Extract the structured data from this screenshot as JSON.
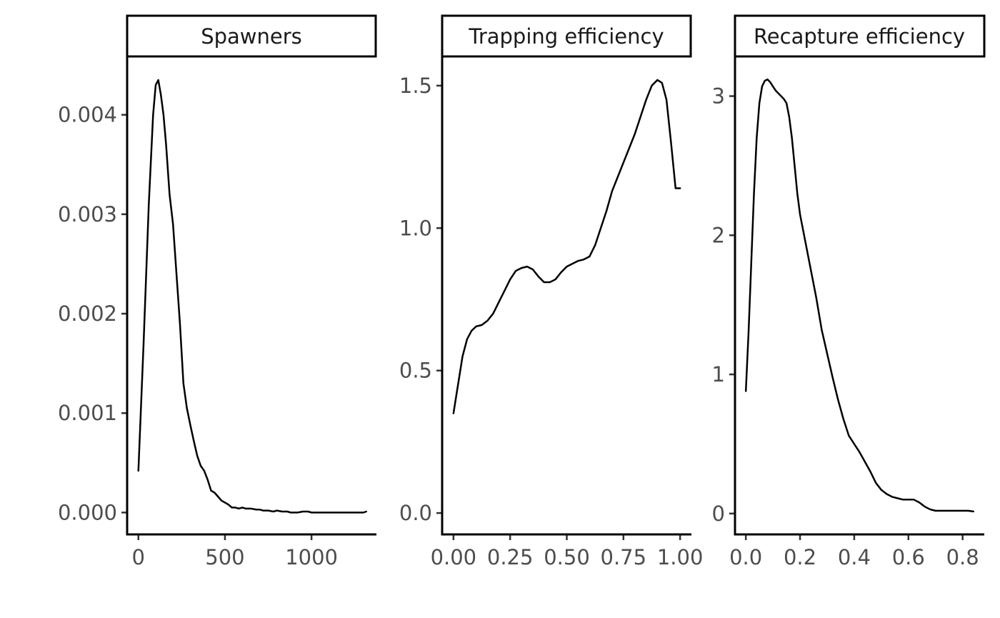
{
  "chart_data": [
    {
      "type": "line",
      "title": "Spawners",
      "xlabel": "",
      "ylabel": "",
      "xlim": [
        -65,
        1375
      ],
      "ylim": [
        -0.00022,
        0.00458
      ],
      "x_ticks": [
        0,
        500,
        1000
      ],
      "x_tick_labels": [
        "0",
        "500",
        "1000"
      ],
      "y_ticks": [
        0,
        0.001,
        0.002,
        0.003,
        0.004
      ],
      "y_tick_labels": [
        "0.000",
        "0.001",
        "0.002",
        "0.003",
        "0.004"
      ],
      "grid": false,
      "series": [
        {
          "x": [
            0,
            30,
            60,
            85,
            100,
            115,
            130,
            145,
            160,
            180,
            200,
            220,
            240,
            260,
            280,
            300,
            320,
            340,
            360,
            380,
            400,
            420,
            440,
            460,
            480,
            500,
            520,
            540,
            560,
            580,
            600,
            620,
            650,
            680,
            700,
            720,
            750,
            780,
            800,
            830,
            860,
            880,
            900,
            920,
            950,
            980,
            1000,
            1050,
            1100,
            1150,
            1200,
            1250,
            1300,
            1316
          ],
          "y": [
            0.00042,
            0.0017,
            0.0031,
            0.004,
            0.0043,
            0.00435,
            0.0042,
            0.004,
            0.0037,
            0.0032,
            0.0029,
            0.0024,
            0.0019,
            0.0013,
            0.00105,
            0.00088,
            0.00072,
            0.00057,
            0.00047,
            0.00042,
            0.00033,
            0.00022,
            0.0002,
            0.00016,
            0.00012,
            0.0001,
            8e-05,
            5e-05,
            5e-05,
            4e-05,
            5e-05,
            4e-05,
            4e-05,
            3e-05,
            3e-05,
            2e-05,
            2e-05,
            1e-05,
            2e-05,
            1e-05,
            1e-05,
            0.0,
            0.0,
            0.0,
            1e-05,
            1e-05,
            0.0,
            0.0,
            0.0,
            0.0,
            0.0,
            0.0,
            0.0,
            1e-05
          ]
        }
      ]
    },
    {
      "type": "line",
      "title": "Trapping efficiency",
      "xlabel": "",
      "ylabel": "",
      "xlim": [
        -0.05,
        1.05
      ],
      "ylim": [
        -0.075,
        1.6
      ],
      "x_ticks": [
        0,
        0.25,
        0.5,
        0.75,
        1.0
      ],
      "x_tick_labels": [
        "0.00",
        "0.25",
        "0.50",
        "0.75",
        "1.00"
      ],
      "y_ticks": [
        0,
        0.5,
        1.0,
        1.5
      ],
      "y_tick_labels": [
        "0.0",
        "0.5",
        "1.0",
        "1.5"
      ],
      "grid": false,
      "series": [
        {
          "x": [
            0.0,
            0.02,
            0.04,
            0.06,
            0.08,
            0.1,
            0.125,
            0.15,
            0.175,
            0.2,
            0.225,
            0.25,
            0.275,
            0.3,
            0.325,
            0.35,
            0.375,
            0.4,
            0.425,
            0.45,
            0.475,
            0.5,
            0.525,
            0.55,
            0.575,
            0.6,
            0.625,
            0.65,
            0.675,
            0.7,
            0.725,
            0.75,
            0.775,
            0.8,
            0.825,
            0.85,
            0.875,
            0.9,
            0.92,
            0.94,
            0.96,
            0.98,
            1.0
          ],
          "y": [
            0.35,
            0.45,
            0.55,
            0.61,
            0.64,
            0.655,
            0.66,
            0.675,
            0.7,
            0.74,
            0.78,
            0.82,
            0.85,
            0.86,
            0.865,
            0.855,
            0.83,
            0.81,
            0.81,
            0.82,
            0.845,
            0.865,
            0.875,
            0.885,
            0.89,
            0.9,
            0.94,
            1.0,
            1.06,
            1.13,
            1.18,
            1.23,
            1.28,
            1.33,
            1.39,
            1.45,
            1.5,
            1.52,
            1.51,
            1.45,
            1.3,
            1.14,
            1.14
          ]
        }
      ]
    },
    {
      "type": "line",
      "title": "Recapture efficiency",
      "xlabel": "",
      "ylabel": "",
      "xlim": [
        -0.04,
        0.88
      ],
      "ylim": [
        -0.15,
        3.28
      ],
      "x_ticks": [
        0,
        0.2,
        0.4,
        0.6,
        0.8
      ],
      "x_tick_labels": [
        "0.0",
        "0.2",
        "0.4",
        "0.6",
        "0.8"
      ],
      "y_ticks": [
        0,
        1,
        2,
        3
      ],
      "y_tick_labels": [
        "0",
        "1",
        "2",
        "3"
      ],
      "grid": false,
      "series": [
        {
          "x": [
            0.0,
            0.01,
            0.02,
            0.03,
            0.04,
            0.05,
            0.06,
            0.07,
            0.08,
            0.09,
            0.1,
            0.11,
            0.12,
            0.13,
            0.14,
            0.15,
            0.16,
            0.17,
            0.18,
            0.19,
            0.2,
            0.22,
            0.24,
            0.26,
            0.28,
            0.3,
            0.32,
            0.34,
            0.36,
            0.38,
            0.4,
            0.42,
            0.44,
            0.46,
            0.48,
            0.5,
            0.52,
            0.54,
            0.56,
            0.58,
            0.6,
            0.62,
            0.64,
            0.66,
            0.68,
            0.7,
            0.72,
            0.74,
            0.76,
            0.78,
            0.8,
            0.82,
            0.84
          ],
          "y": [
            0.88,
            1.3,
            1.8,
            2.3,
            2.7,
            2.95,
            3.07,
            3.11,
            3.12,
            3.1,
            3.07,
            3.04,
            3.02,
            3.0,
            2.98,
            2.95,
            2.85,
            2.7,
            2.5,
            2.3,
            2.15,
            1.95,
            1.75,
            1.55,
            1.32,
            1.15,
            0.98,
            0.82,
            0.68,
            0.56,
            0.5,
            0.44,
            0.37,
            0.3,
            0.22,
            0.17,
            0.14,
            0.12,
            0.11,
            0.1,
            0.1,
            0.1,
            0.08,
            0.05,
            0.03,
            0.02,
            0.02,
            0.02,
            0.02,
            0.02,
            0.02,
            0.02,
            0.015
          ]
        }
      ]
    }
  ]
}
